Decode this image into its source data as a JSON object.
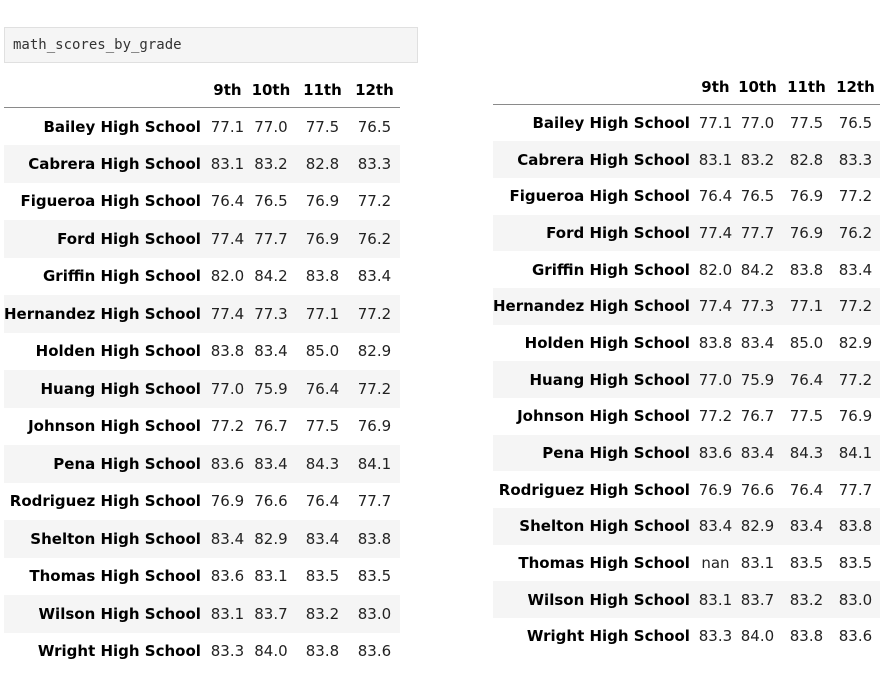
{
  "code_cell": {
    "text": "math_scores_by_grade"
  },
  "columns": [
    "9th",
    "10th",
    "11th",
    "12th"
  ],
  "left_table": {
    "rows": [
      {
        "school": "Bailey High School",
        "values": [
          "77.1",
          "77.0",
          "77.5",
          "76.5"
        ]
      },
      {
        "school": "Cabrera High School",
        "values": [
          "83.1",
          "83.2",
          "82.8",
          "83.3"
        ]
      },
      {
        "school": "Figueroa High School",
        "values": [
          "76.4",
          "76.5",
          "76.9",
          "77.2"
        ]
      },
      {
        "school": "Ford High School",
        "values": [
          "77.4",
          "77.7",
          "76.9",
          "76.2"
        ]
      },
      {
        "school": "Griffin High School",
        "values": [
          "82.0",
          "84.2",
          "83.8",
          "83.4"
        ]
      },
      {
        "school": "Hernandez High School",
        "values": [
          "77.4",
          "77.3",
          "77.1",
          "77.2"
        ]
      },
      {
        "school": "Holden High School",
        "values": [
          "83.8",
          "83.4",
          "85.0",
          "82.9"
        ]
      },
      {
        "school": "Huang High School",
        "values": [
          "77.0",
          "75.9",
          "76.4",
          "77.2"
        ]
      },
      {
        "school": "Johnson High School",
        "values": [
          "77.2",
          "76.7",
          "77.5",
          "76.9"
        ]
      },
      {
        "school": "Pena High School",
        "values": [
          "83.6",
          "83.4",
          "84.3",
          "84.1"
        ]
      },
      {
        "school": "Rodriguez High School",
        "values": [
          "76.9",
          "76.6",
          "76.4",
          "77.7"
        ]
      },
      {
        "school": "Shelton High School",
        "values": [
          "83.4",
          "82.9",
          "83.4",
          "83.8"
        ]
      },
      {
        "school": "Thomas High School",
        "values": [
          "83.6",
          "83.1",
          "83.5",
          "83.5"
        ]
      },
      {
        "school": "Wilson High School",
        "values": [
          "83.1",
          "83.7",
          "83.2",
          "83.0"
        ]
      },
      {
        "school": "Wright High School",
        "values": [
          "83.3",
          "84.0",
          "83.8",
          "83.6"
        ]
      }
    ]
  },
  "right_table": {
    "rows": [
      {
        "school": "Bailey High School",
        "values": [
          "77.1",
          "77.0",
          "77.5",
          "76.5"
        ]
      },
      {
        "school": "Cabrera High School",
        "values": [
          "83.1",
          "83.2",
          "82.8",
          "83.3"
        ]
      },
      {
        "school": "Figueroa High School",
        "values": [
          "76.4",
          "76.5",
          "76.9",
          "77.2"
        ]
      },
      {
        "school": "Ford High School",
        "values": [
          "77.4",
          "77.7",
          "76.9",
          "76.2"
        ]
      },
      {
        "school": "Griffin High School",
        "values": [
          "82.0",
          "84.2",
          "83.8",
          "83.4"
        ]
      },
      {
        "school": "Hernandez High School",
        "values": [
          "77.4",
          "77.3",
          "77.1",
          "77.2"
        ]
      },
      {
        "school": "Holden High School",
        "values": [
          "83.8",
          "83.4",
          "85.0",
          "82.9"
        ]
      },
      {
        "school": "Huang High School",
        "values": [
          "77.0",
          "75.9",
          "76.4",
          "77.2"
        ]
      },
      {
        "school": "Johnson High School",
        "values": [
          "77.2",
          "76.7",
          "77.5",
          "76.9"
        ]
      },
      {
        "school": "Pena High School",
        "values": [
          "83.6",
          "83.4",
          "84.3",
          "84.1"
        ]
      },
      {
        "school": "Rodriguez High School",
        "values": [
          "76.9",
          "76.6",
          "76.4",
          "77.7"
        ]
      },
      {
        "school": "Shelton High School",
        "values": [
          "83.4",
          "82.9",
          "83.4",
          "83.8"
        ]
      },
      {
        "school": "Thomas High School",
        "values": [
          "nan",
          "83.1",
          "83.5",
          "83.5"
        ]
      },
      {
        "school": "Wilson High School",
        "values": [
          "83.1",
          "83.7",
          "83.2",
          "83.0"
        ]
      },
      {
        "school": "Wright High School",
        "values": [
          "83.3",
          "84.0",
          "83.8",
          "83.6"
        ]
      }
    ]
  }
}
